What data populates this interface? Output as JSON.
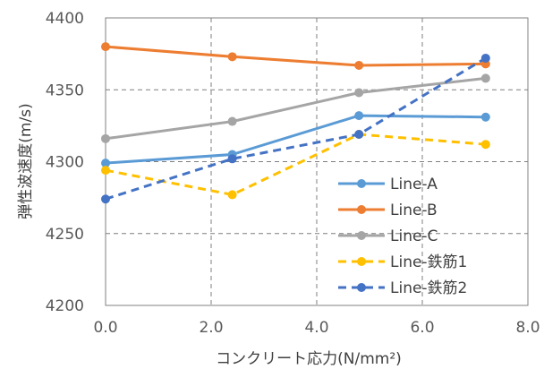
{
  "chart_data": {
    "type": "line",
    "xlabel": "コンクリート応力(N/mm²)",
    "ylabel": "弾性波速度(m/s)",
    "xlim": [
      0.0,
      8.0
    ],
    "ylim": [
      4200,
      4400
    ],
    "xticks": [
      "0.0",
      "2.0",
      "4.0",
      "6.0",
      "8.0"
    ],
    "yticks": [
      "4200",
      "4250",
      "4300",
      "4350",
      "4400"
    ],
    "grid": true,
    "legend_position": "lower-right",
    "x": [
      0.0,
      2.4,
      4.8,
      7.2
    ],
    "series": [
      {
        "name": "Line-A",
        "values": [
          4299,
          4305,
          4332,
          4331
        ],
        "color": "#5b9bd5",
        "dash": false
      },
      {
        "name": "Line-B",
        "values": [
          4380,
          4373,
          4367,
          4368
        ],
        "color": "#ed7d31",
        "dash": false
      },
      {
        "name": "Line-C",
        "values": [
          4316,
          4328,
          4348,
          4358
        ],
        "color": "#a5a5a5",
        "dash": false
      },
      {
        "name": "Line-鉄筋1",
        "values": [
          4294,
          4277,
          4319,
          4312
        ],
        "color": "#ffc000",
        "dash": true
      },
      {
        "name": "Line-鉄筋2",
        "values": [
          4274,
          4302,
          4319,
          4372
        ],
        "color": "#4472c4",
        "dash": true
      }
    ]
  }
}
